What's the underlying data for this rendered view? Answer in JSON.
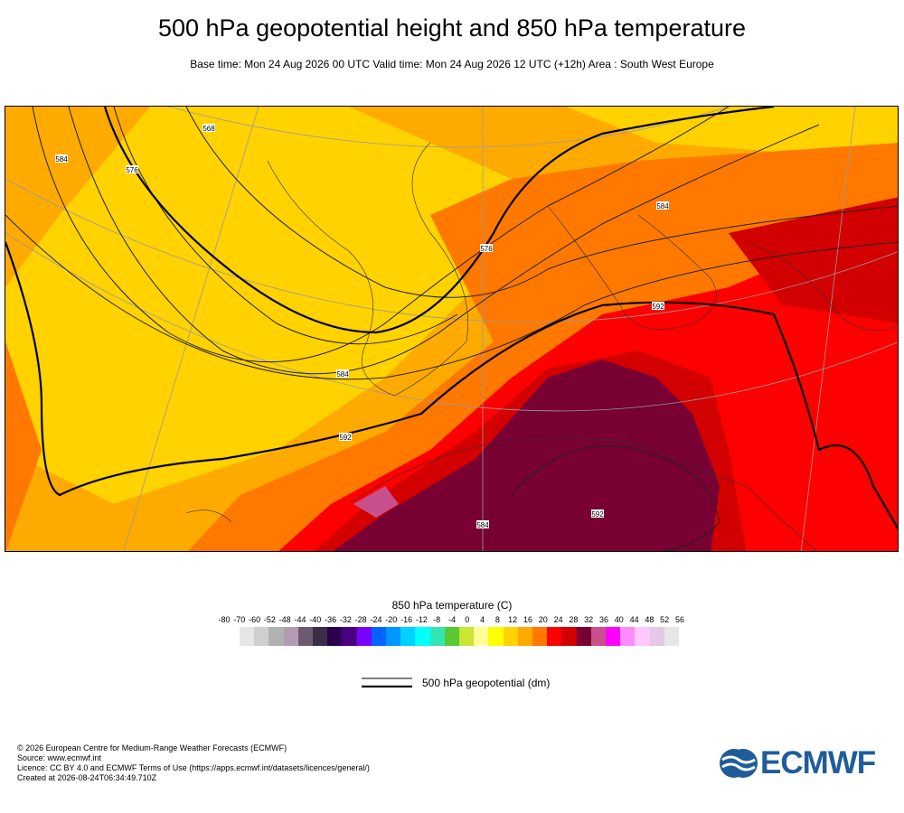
{
  "header": {
    "title": "500 hPa geopotential height and 850 hPa temperature",
    "subtitle": "Base time: Mon 24 Aug 2026 00 UTC Valid time: Mon 24 Aug 2026 12 UTC (+12h) Area : South West Europe"
  },
  "map": {
    "contour_labels": [
      {
        "text": "568"
      },
      {
        "text": "576"
      },
      {
        "text": "584"
      },
      {
        "text": "584"
      },
      {
        "text": "584"
      },
      {
        "text": "592"
      },
      {
        "text": "592"
      },
      {
        "text": "592"
      },
      {
        "text": "576"
      },
      {
        "text": "584"
      }
    ]
  },
  "legend": {
    "title": "850 hPa temperature (C)",
    "ticks": [
      "-80",
      "-70",
      "-60",
      "-52",
      "-48",
      "-44",
      "-40",
      "-36",
      "-32",
      "-28",
      "-24",
      "-20",
      "-16",
      "-12",
      "-8",
      "-4",
      "0",
      "4",
      "8",
      "12",
      "16",
      "20",
      "24",
      "28",
      "32",
      "36",
      "40",
      "44",
      "48",
      "52",
      "56"
    ],
    "colors": [
      "#e6e6e6",
      "#cfcfcf",
      "#b1b1b1",
      "#b39cb3",
      "#6e5a6e",
      "#3c2d46",
      "#2a004f",
      "#4b0082",
      "#7a00ff",
      "#0064ff",
      "#0096ff",
      "#00d2ff",
      "#00ffff",
      "#32e6b4",
      "#5ac832",
      "#c8e632",
      "#ffff96",
      "#ffff00",
      "#ffd200",
      "#ffaa00",
      "#ff7800",
      "#ff0000",
      "#d20000",
      "#780032",
      "#c8508c",
      "#ff00ff",
      "#ff8cff",
      "#ffc8ff",
      "#e6c8e6",
      "#e6e6e6"
    ],
    "contour_key_label": "500 hPa geopotential (dm)"
  },
  "credits": {
    "copyright": "© 2026 European Centre for Medium-Range Weather Forecasts (ECMWF)",
    "source": "Source: www.ecmwf.int",
    "licence": "Licence: CC BY 4.0 and ECMWF Terms of Use (https://apps.ecmwf.int/datasets/licences/general/)",
    "created": "Created at 2026-08-24T06:34:49.710Z"
  },
  "logo": {
    "text": "ECMWF",
    "color": "#1f5d99"
  }
}
